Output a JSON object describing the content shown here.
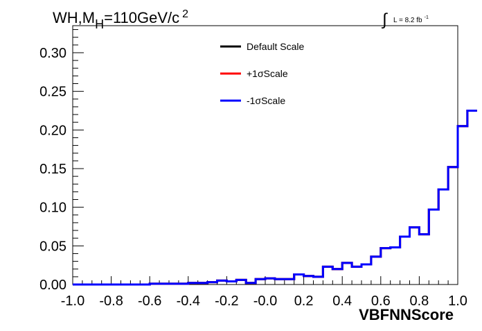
{
  "chart_data": {
    "type": "histogram",
    "title_parts": {
      "a": "WH,M",
      "sub": "H",
      "b": "=110GeV/c",
      "sup": "2"
    },
    "lumi_parts": {
      "sym": "∫",
      "text": "L = 8.2 fb",
      "sup": "-1"
    },
    "xlabel": "VBFNNScore",
    "ylabel": "",
    "xlim": [
      -1.0,
      1.0
    ],
    "ylim": [
      0,
      0.335
    ],
    "xticks": [
      "-1.0",
      "-0.8",
      "-0.6",
      "-0.4",
      "-0.2",
      "-0.0",
      "0.2",
      "0.4",
      "0.6",
      "0.8",
      "1.0"
    ],
    "yticks": [
      "0.00",
      "0.05",
      "0.10",
      "0.15",
      "0.20",
      "0.25",
      "0.30"
    ],
    "bin_edges_start": -1.0,
    "bin_width": 0.05,
    "series": [
      {
        "name": "Default Scale",
        "color": "#000000",
        "values": [
          0.0,
          0.0,
          0.0,
          0.0,
          0.0,
          0.0,
          0.0,
          0.0,
          0.001,
          0.001,
          0.001,
          0.001,
          0.002,
          0.002,
          0.003,
          0.005,
          0.004,
          0.006,
          0.002,
          0.007,
          0.008,
          0.007,
          0.007,
          0.013,
          0.011,
          0.01,
          0.023,
          0.02,
          0.028,
          0.023,
          0.026,
          0.036,
          0.047,
          0.048,
          0.062,
          0.074,
          0.065,
          0.097,
          0.123,
          0.152,
          0.205,
          0.225
        ]
      },
      {
        "name": "+1σScale",
        "color": "#ff0000",
        "values": [
          0.0,
          0.0,
          0.0,
          0.0,
          0.0,
          0.0,
          0.0,
          0.0,
          0.001,
          0.001,
          0.001,
          0.001,
          0.002,
          0.002,
          0.003,
          0.005,
          0.004,
          0.006,
          0.002,
          0.007,
          0.008,
          0.007,
          0.007,
          0.013,
          0.011,
          0.01,
          0.023,
          0.02,
          0.028,
          0.023,
          0.026,
          0.036,
          0.047,
          0.048,
          0.062,
          0.074,
          0.065,
          0.097,
          0.123,
          0.152,
          0.205,
          0.225
        ]
      },
      {
        "name": "-1σScale",
        "color": "#0000ff",
        "values": [
          0.0,
          0.0,
          0.0,
          0.0,
          0.0,
          0.0,
          0.0,
          0.0,
          0.001,
          0.001,
          0.001,
          0.001,
          0.002,
          0.002,
          0.003,
          0.005,
          0.004,
          0.006,
          0.002,
          0.007,
          0.008,
          0.007,
          0.007,
          0.013,
          0.011,
          0.01,
          0.023,
          0.02,
          0.028,
          0.023,
          0.026,
          0.036,
          0.047,
          0.048,
          0.062,
          0.074,
          0.065,
          0.097,
          0.123,
          0.152,
          0.205,
          0.225
        ]
      }
    ],
    "legend_placement": "top-center",
    "grid": false
  }
}
